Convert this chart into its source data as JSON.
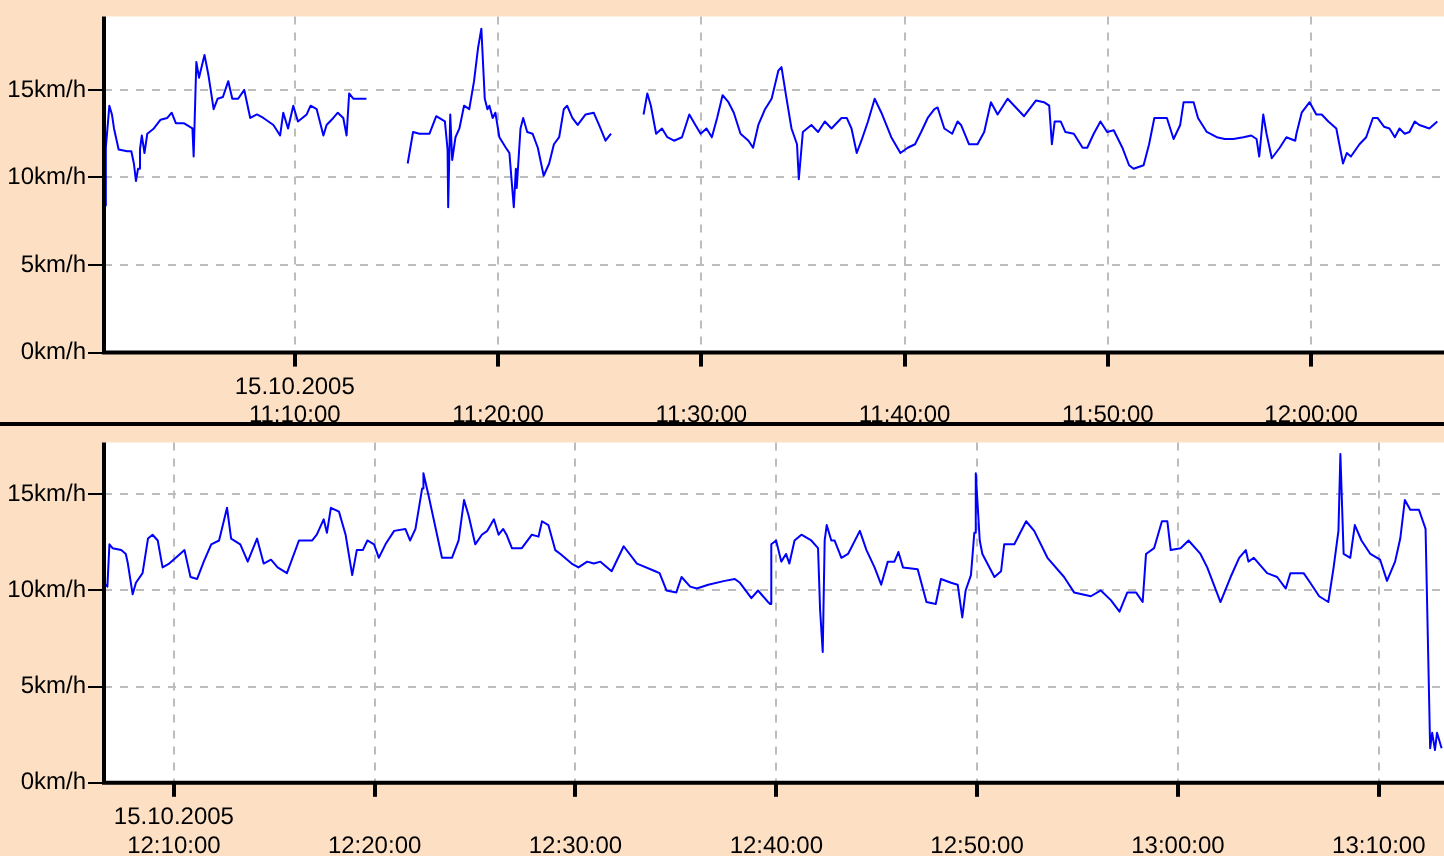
{
  "chart_data": [
    {
      "type": "line",
      "grid": true,
      "marker": "none",
      "xlim": [
        11.0103,
        12.109
      ],
      "xticks": [
        {
          "value": 11.1667,
          "label": "15.10.2005\n11:10:00"
        },
        {
          "value": 11.3333,
          "label": "11:20:00"
        },
        {
          "value": 11.5,
          "label": "11:30:00"
        },
        {
          "value": 11.6667,
          "label": "11:40:00"
        },
        {
          "value": 11.8333,
          "label": "11:50:00"
        },
        {
          "value": 12,
          "label": "12:00:00"
        }
      ],
      "ylim": [
        0,
        19.2
      ],
      "yticks": [
        {
          "value": 0,
          "label": "0km/h"
        },
        {
          "value": 5,
          "label": "5km/h"
        },
        {
          "value": 10,
          "label": "10km/h"
        },
        {
          "value": 15,
          "label": "15km/h"
        }
      ],
      "x": [
        11.011,
        11.0118,
        11.0147,
        11.0168,
        11.0185,
        11.0223,
        11.0293,
        11.0327,
        11.0348,
        11.0365,
        11.0382,
        11.0398,
        11.0413,
        11.0435,
        11.0458,
        11.0512,
        11.0567,
        11.0622,
        11.0658,
        11.0692,
        11.0757,
        11.0828,
        11.0838,
        11.086,
        11.0882,
        11.0927,
        11.0958,
        11.1002,
        11.1035,
        11.1078,
        11.1122,
        11.1155,
        11.1203,
        11.1253,
        11.1302,
        11.1357,
        11.141,
        11.1492,
        11.1547,
        11.1573,
        11.1612,
        11.1655,
        11.1693,
        11.1765,
        11.1797,
        11.1847,
        11.1902,
        11.1928,
        11.1983,
        11.202,
        11.2065,
        11.2092,
        11.2113,
        11.2147,
        11.2255,
        11.2417,
        11.2593,
        11.2637,
        11.269,
        11.2772,
        11.2827,
        11.2898,
        11.292,
        11.2925,
        11.2942,
        11.2958,
        11.2985,
        11.3017,
        11.3055,
        11.3098,
        11.3137,
        11.317,
        11.3197,
        11.3225,
        11.3247,
        11.3263,
        11.329,
        11.3312,
        11.3345,
        11.3398,
        11.3427,
        11.3442,
        11.3463,
        11.348,
        11.3487,
        11.3518,
        11.354,
        11.3573,
        11.3617,
        11.366,
        11.3708,
        11.3753,
        11.3792,
        11.3835,
        11.3873,
        11.39,
        11.3943,
        11.3987,
        11.4052,
        11.4118,
        11.4162,
        11.4215,
        11.426,
        11.44,
        11.4527,
        11.4558,
        11.4587,
        11.463,
        11.4678,
        11.4722,
        11.4777,
        11.4842,
        11.4902,
        11.4952,
        11.4995,
        11.5043,
        11.5087,
        11.513,
        11.5175,
        11.5223,
        11.5267,
        11.5322,
        11.5387,
        11.5425,
        11.5468,
        11.5523,
        11.5577,
        11.5632,
        11.5658,
        11.5697,
        11.574,
        11.5785,
        11.58,
        11.5833,
        11.5903,
        11.5958,
        11.6013,
        11.6068,
        11.615,
        11.6193,
        11.6232,
        11.6275,
        11.6313,
        11.6367,
        11.6422,
        11.6477,
        11.6558,
        11.6633,
        11.6693,
        11.6753,
        11.6803,
        11.6857,
        11.6912,
        11.6938,
        11.6993,
        11.7058,
        11.7102,
        11.713,
        11.7195,
        11.7265,
        11.732,
        11.7375,
        11.743,
        11.7512,
        11.7593,
        11.7647,
        11.7745,
        11.781,
        11.7853,
        11.7875,
        11.7898,
        11.7947,
        11.7985,
        11.8055,
        11.8127,
        11.8165,
        11.8218,
        11.8273,
        11.8328,
        11.8382,
        11.8453,
        11.8508,
        11.8545,
        11.8627,
        11.8672,
        11.8715,
        11.8818,
        11.8873,
        11.8927,
        11.8955,
        11.9037,
        11.9073,
        11.9145,
        11.9227,
        11.9292,
        11.9363,
        11.9445,
        11.951,
        11.9553,
        11.9575,
        11.9608,
        11.9635,
        11.9678,
        11.9743,
        11.9798,
        11.987,
        11.988,
        11.9923,
        11.9988,
        12.0043,
        12.0087,
        12.0142,
        12.0207,
        12.0262,
        12.0293,
        12.0327,
        12.0397,
        12.0452,
        12.0507,
        12.0545,
        12.0598,
        12.0643,
        12.0687,
        12.0725,
        12.0768,
        12.0807,
        12.085,
        12.0888,
        12.097,
        12.1035
      ],
      "series": [
        {
          "color": "#0000ff",
          "values": [
            8.4,
            11.7,
            14.1,
            13.6,
            12.8,
            11.6,
            11.5,
            11.5,
            10.8,
            9.8,
            10.5,
            11.6,
            12.4,
            11.4,
            12.5,
            12.8,
            13.3,
            13.4,
            13.7,
            13.1,
            13.1,
            12.8,
            11.2,
            16.6,
            15.7,
            17.0,
            15.9,
            13.9,
            14.5,
            14.6,
            15.5,
            14.5,
            14.5,
            15.0,
            13.4,
            13.6,
            13.4,
            13.0,
            12.4,
            13.7,
            12.8,
            14.1,
            13.2,
            13.6,
            14.1,
            13.9,
            12.4,
            13.0,
            13.4,
            13.7,
            13.4,
            12.4,
            14.8,
            14.5,
            14.5,
            null,
            10.8,
            12.6,
            12.5,
            12.5,
            13.5,
            13.2,
            11.6,
            8.3,
            13.6,
            11.0,
            12.3,
            12.8,
            14.1,
            13.9,
            15.5,
            17.4,
            18.5,
            14.5,
            13.9,
            14.1,
            13.4,
            13.7,
            12.3,
            11.7,
            11.4,
            10.1,
            8.3,
            10.5,
            9.4,
            12.8,
            13.4,
            12.6,
            12.5,
            11.7,
            10.1,
            10.8,
            11.9,
            12.3,
            13.9,
            14.1,
            13.4,
            13.0,
            13.6,
            13.7,
            13.0,
            12.1,
            12.5,
            null,
            13.6,
            14.8,
            14.1,
            12.5,
            12.8,
            12.3,
            12.1,
            12.3,
            13.6,
            13.0,
            12.5,
            12.8,
            12.3,
            13.4,
            14.7,
            14.3,
            13.7,
            12.5,
            12.1,
            11.7,
            13.0,
            13.9,
            14.5,
            16.1,
            16.3,
            14.6,
            12.8,
            11.9,
            9.9,
            12.6,
            13.0,
            12.6,
            13.2,
            12.8,
            13.4,
            13.4,
            12.8,
            11.4,
            12.1,
            13.2,
            14.5,
            13.7,
            12.3,
            11.4,
            11.7,
            11.9,
            12.6,
            13.4,
            13.9,
            14.0,
            12.8,
            12.5,
            13.2,
            13.0,
            11.9,
            11.9,
            12.6,
            14.3,
            13.6,
            14.5,
            13.9,
            13.5,
            14.4,
            14.3,
            14.1,
            11.9,
            13.2,
            13.2,
            12.6,
            12.5,
            11.7,
            11.7,
            12.5,
            13.2,
            12.6,
            12.7,
            11.7,
            10.7,
            10.5,
            10.7,
            11.9,
            13.4,
            13.4,
            12.2,
            13.0,
            14.3,
            14.3,
            13.4,
            12.6,
            12.3,
            12.2,
            12.2,
            12.3,
            12.4,
            12.2,
            11.2,
            13.6,
            12.5,
            11.1,
            11.7,
            12.3,
            12.1,
            12.5,
            13.7,
            14.3,
            13.6,
            13.6,
            13.2,
            12.8,
            10.8,
            11.4,
            11.2,
            11.9,
            12.3,
            13.4,
            13.4,
            12.9,
            12.8,
            12.3,
            12.8,
            12.5,
            12.6,
            13.2,
            13.0,
            12.8,
            13.2
          ]
        }
      ]
    },
    {
      "type": "line",
      "grid": true,
      "marker": "none",
      "xlim": [
        12.1087,
        13.2208
      ],
      "xticks": [
        {
          "value": 12.1667,
          "label": "15.10.2005\n12:10:00"
        },
        {
          "value": 12.3333,
          "label": "12:20:00"
        },
        {
          "value": 12.5,
          "label": "12:30:00"
        },
        {
          "value": 12.6667,
          "label": "12:40:00"
        },
        {
          "value": 12.8333,
          "label": "12:50:00"
        },
        {
          "value": 13,
          "label": "13:00:00"
        },
        {
          "value": 13.1667,
          "label": "13:10:00"
        }
      ],
      "ylim": [
        0,
        17.7
      ],
      "yticks": [
        {
          "value": 0,
          "label": "0km/h"
        },
        {
          "value": 5,
          "label": "5km/h"
        },
        {
          "value": 10,
          "label": "10km/h"
        },
        {
          "value": 15,
          "label": "15km/h"
        }
      ],
      "x": [
        12.1087,
        12.1115,
        12.1132,
        12.1158,
        12.123,
        12.1268,
        12.1285,
        12.1325,
        12.1352,
        12.1407,
        12.1452,
        12.149,
        12.1533,
        12.1573,
        12.1628,
        12.1683,
        12.1755,
        12.1805,
        12.186,
        12.1915,
        12.1977,
        12.2042,
        12.2108,
        12.2142,
        12.2218,
        12.228,
        12.2357,
        12.2412,
        12.2473,
        12.2528,
        12.2605,
        12.2705,
        12.2815,
        12.2853,
        12.291,
        12.2937,
        12.297,
        12.3037,
        12.3092,
        12.3147,
        12.3185,
        12.3235,
        12.3273,
        12.3328,
        12.3368,
        12.3423,
        12.3495,
        12.3588,
        12.3627,
        12.3672,
        12.3727,
        12.3738,
        12.3782,
        12.3892,
        12.3975,
        12.403,
        12.4075,
        12.4113,
        12.4168,
        12.4223,
        12.4268,
        12.4323,
        12.4362,
        12.44,
        12.4428,
        12.4472,
        12.4555,
        12.4638,
        12.4693,
        12.4722,
        12.4775,
        12.4832,
        12.4875,
        12.4968,
        12.5025,
        12.5097,
        12.5152,
        12.5207,
        12.53,
        12.54,
        12.551,
        12.5662,
        12.5698,
        12.5755,
        12.5837,
        12.588,
        12.5952,
        12.6007,
        12.6102,
        12.6238,
        12.6322,
        12.6365,
        12.646,
        12.6515,
        12.6598,
        12.6615,
        12.6625,
        12.6665,
        12.6708,
        12.6747,
        12.6775,
        12.6818,
        12.6875,
        12.6957,
        12.7013,
        12.703,
        12.7052,
        12.7068,
        12.7085,
        12.7123,
        12.715,
        12.7207,
        12.7262,
        12.736,
        12.7415,
        12.7482,
        12.7537,
        12.7592,
        12.7647,
        12.768,
        12.7718,
        12.784,
        12.7913,
        12.799,
        12.8033,
        12.8117,
        12.8172,
        12.821,
        12.8238,
        12.8282,
        12.831,
        12.8322,
        12.8355,
        12.8377,
        12.8477,
        12.8532,
        12.8558,
        12.8642,
        12.874,
        12.8807,
        12.8917,
        12.9055,
        12.9138,
        12.9277,
        12.936,
        12.9443,
        12.9515,
        12.958,
        12.9652,
        12.9707,
        12.9735,
        12.9802,
        12.9867,
        12.9912,
        12.994,
        13.0022,
        13.0088,
        13.0187,
        13.0243,
        13.0353,
        13.0437,
        13.0508,
        13.0563,
        13.0585,
        13.063,
        13.074,
        13.0823,
        13.0895,
        13.0933,
        13.1043,
        13.1098,
        13.1172,
        13.1248,
        13.1292,
        13.1332,
        13.1348,
        13.1375,
        13.143,
        13.1468,
        13.1523,
        13.1597,
        13.1678,
        13.1735,
        13.1802,
        13.1845,
        13.1883,
        13.1928,
        13.2,
        13.2055,
        13.2093,
        13.211,
        13.2133,
        13.215,
        13.2188
      ],
      "series": [
        {
          "color": "#0000ff",
          "values": [
            10.4,
            10.2,
            12.4,
            12.2,
            12.1,
            11.9,
            11.4,
            9.8,
            10.4,
            10.9,
            12.7,
            12.9,
            12.6,
            11.2,
            11.4,
            11.7,
            12.1,
            10.7,
            10.6,
            11.5,
            12.4,
            12.6,
            14.3,
            12.7,
            12.4,
            11.5,
            12.7,
            11.4,
            11.6,
            11.2,
            10.9,
            12.6,
            12.6,
            12.9,
            13.7,
            13.0,
            14.3,
            14.1,
            12.9,
            10.8,
            12.1,
            12.1,
            12.6,
            12.4,
            11.7,
            12.4,
            13.1,
            13.2,
            12.6,
            13.2,
            15.3,
            16.1,
            14.9,
            11.7,
            11.7,
            12.6,
            14.7,
            13.9,
            12.4,
            12.9,
            13.1,
            13.7,
            12.9,
            13.2,
            12.9,
            12.2,
            12.2,
            12.9,
            12.8,
            13.6,
            13.4,
            12.1,
            11.9,
            11.4,
            11.2,
            11.5,
            11.4,
            11.5,
            11.0,
            12.3,
            11.4,
            11.0,
            10.9,
            10.0,
            9.9,
            10.7,
            10.2,
            10.1,
            10.3,
            10.5,
            10.6,
            10.4,
            9.6,
            10.0,
            9.4,
            9.3,
            12.4,
            12.6,
            11.5,
            11.9,
            11.4,
            12.6,
            12.9,
            12.6,
            12.2,
            9.0,
            6.8,
            12.6,
            13.4,
            12.6,
            12.6,
            11.7,
            11.9,
            13.1,
            12.1,
            11.2,
            10.3,
            11.5,
            11.5,
            12.0,
            11.2,
            11.1,
            9.4,
            9.3,
            10.6,
            10.4,
            10.3,
            8.6,
            10.0,
            10.8,
            13.0,
            16.1,
            12.6,
            11.9,
            10.7,
            11.0,
            12.4,
            12.4,
            13.6,
            13.1,
            11.7,
            10.7,
            9.9,
            9.7,
            10.0,
            9.5,
            8.9,
            9.9,
            9.9,
            9.4,
            11.9,
            12.2,
            13.6,
            13.6,
            12.1,
            12.2,
            12.6,
            11.9,
            11.2,
            9.4,
            10.7,
            11.7,
            12.1,
            11.5,
            11.7,
            10.9,
            10.7,
            10.1,
            10.9,
            10.9,
            10.4,
            9.7,
            9.4,
            11.2,
            13.1,
            17.1,
            11.9,
            11.7,
            13.4,
            12.6,
            11.9,
            11.6,
            10.5,
            11.5,
            12.7,
            14.7,
            14.2,
            14.2,
            13.2,
            1.8,
            2.6,
            1.7,
            2.6,
            1.8
          ]
        }
      ]
    }
  ]
}
